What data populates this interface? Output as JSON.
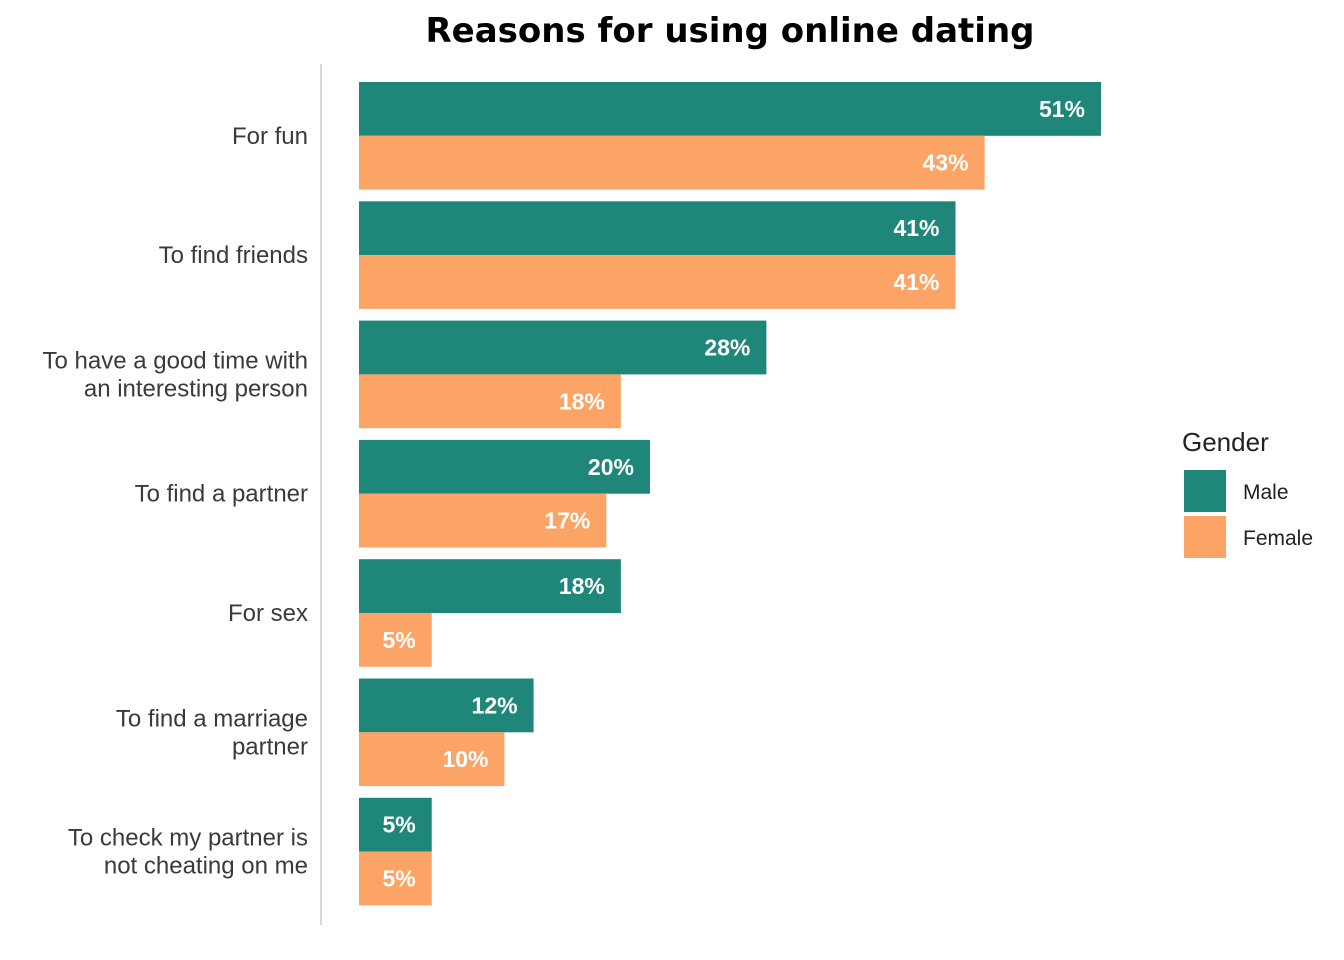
{
  "chart_data": {
    "type": "bar",
    "orientation": "horizontal",
    "title": "Reasons for using online dating",
    "categories": [
      [
        "For fun"
      ],
      [
        "To find friends"
      ],
      [
        "To have a good time with",
        "an interesting person"
      ],
      [
        "To find a partner"
      ],
      [
        "For sex"
      ],
      [
        "To find a marriage",
        "partner"
      ],
      [
        "To check my partner is",
        "not cheating on me"
      ]
    ],
    "series": [
      {
        "name": "Male",
        "color": "#1f877a",
        "values": [
          51,
          41,
          28,
          20,
          18,
          12,
          5
        ]
      },
      {
        "name": "Female",
        "color": "#fca366",
        "values": [
          43,
          41,
          18,
          17,
          5,
          10,
          5
        ]
      }
    ],
    "value_suffix": "%",
    "xlim": [
      0,
      51
    ],
    "grid": false,
    "legend": {
      "title": "Gender",
      "position": "right"
    },
    "xlabel": "",
    "ylabel": ""
  }
}
